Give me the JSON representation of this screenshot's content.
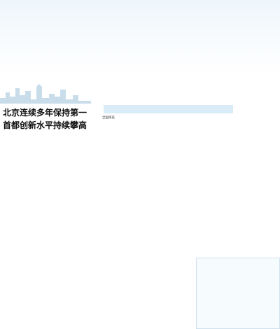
{
  "top_section": {
    "title_line1": "",
    "title_line2": "",
    "note": "",
    "side_tag": ""
  },
  "arc_cities": [],
  "left_article": {
    "headline1": "北京连续多年保持第一",
    "paras1": [],
    "headline2": "首都创新水平持续攀高",
    "paras2": []
  },
  "ranking": {
    "title": "",
    "col_rank": "全国排名",
    "col_city": "",
    "col_score": "",
    "items": []
  },
  "right_panel": {
    "note": ""
  },
  "capital_chart": {
    "title": "",
    "subtitle": "",
    "note": ""
  },
  "source": "",
  "chart_data": [
    {
      "type": "bar",
      "title": "",
      "categories": [],
      "values": [],
      "xlim": [
        0,
        1
      ]
    },
    {
      "type": "bar",
      "title": "",
      "categories": [],
      "values": []
    }
  ],
  "colors": {
    "accent": "#1e4f86",
    "bar_gold": "#e7a72c",
    "bar_blue": "#3a6fb0",
    "bar_light": "#5aa3d8"
  }
}
